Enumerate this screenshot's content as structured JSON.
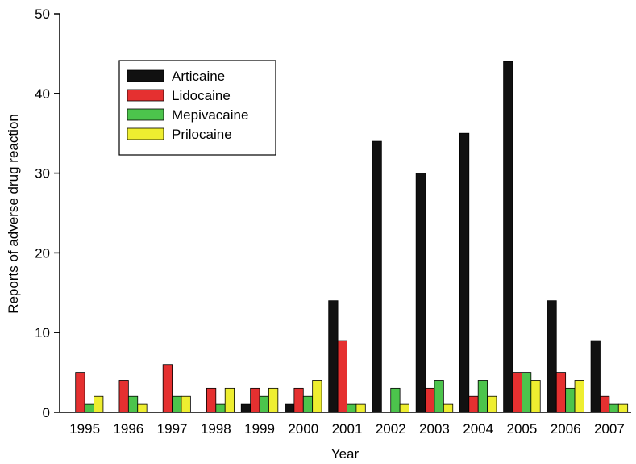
{
  "chart_data": {
    "type": "bar",
    "title": "",
    "xlabel": "Year",
    "ylabel": "Reports of adverse drug reaction",
    "ylim": [
      0,
      50
    ],
    "yticks": [
      "0",
      "10",
      "20",
      "30",
      "40",
      "50"
    ],
    "categories": [
      "1995",
      "1996",
      "1997",
      "1998",
      "1999",
      "2000",
      "2001",
      "2002",
      "2003",
      "2004",
      "2005",
      "2006",
      "2007"
    ],
    "series": [
      {
        "name": "Articaine",
        "color": "#111111",
        "values": [
          0,
          0,
          0,
          0,
          1,
          1,
          14,
          34,
          30,
          35,
          44,
          14,
          9
        ]
      },
      {
        "name": "Lidocaine",
        "color": "#e53030",
        "values": [
          5,
          4,
          6,
          3,
          3,
          3,
          9,
          0,
          3,
          2,
          5,
          5,
          2
        ]
      },
      {
        "name": "Mepivacaine",
        "color": "#4cc44c",
        "values": [
          1,
          2,
          2,
          1,
          2,
          2,
          1,
          3,
          4,
          4,
          5,
          3,
          1
        ]
      },
      {
        "name": "Prilocaine",
        "color": "#eeee30",
        "values": [
          2,
          1,
          2,
          3,
          3,
          4,
          1,
          1,
          1,
          2,
          4,
          4,
          1
        ]
      }
    ],
    "grid": false,
    "legend_position": "top-left"
  }
}
